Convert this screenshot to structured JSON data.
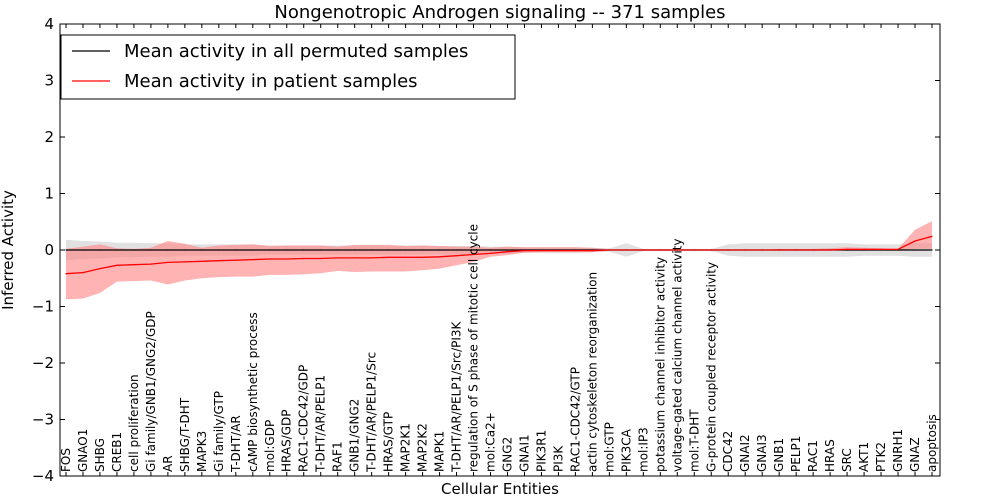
{
  "chart_data": {
    "type": "line",
    "title": "Nongenotropic Androgen signaling -- 371 samples",
    "xlabel": "Cellular Entities",
    "ylabel": "Inferred Activity",
    "ylim": [
      -4,
      4
    ],
    "yticks": [
      -4,
      -3,
      -2,
      -1,
      0,
      1,
      2,
      3,
      4
    ],
    "legend_position": "top-left",
    "colors": {
      "permuted_line": "#000000",
      "permuted_band": "#c8c8c8",
      "patient_line": "#ff0000",
      "patient_band": "#ff8080"
    },
    "categories": [
      "FOS",
      "GNAO1",
      "SHBG",
      "CREB1",
      "cell proliferation",
      "Gi family/GNB1/GNG2/GDP",
      "AR",
      "SHBG/T-DHT",
      "MAPK3",
      "Gi family/GTP",
      "T-DHT/AR",
      "cAMP biosynthetic process",
      "mol:GDP",
      "HRAS/GDP",
      "RAC1-CDC42/GDP",
      "T-DHT/AR/PELP1",
      "RAF1",
      "GNB1/GNG2",
      "T-DHT/AR/PELP1/Src",
      "HRAS/GTP",
      "MAP2K1",
      "MAP2K2",
      "MAPK1",
      "T-DHT/AR/PELP1/Src/PI3K",
      "regulation of S phase of mitotic cell cycle",
      "mol:Ca2+",
      "GNG2",
      "GNAI1",
      "PIK3R1",
      "PI3K",
      "RAC1-CDC42/GTP",
      "actin cytoskeleton reorganization",
      "mol:GTP",
      "PIK3CA",
      "mol:IP3",
      "potassium channel inhibitor activity",
      "voltage-gated calcium channel activity",
      "mol:T-DHT",
      "G-protein coupled receptor activity",
      "CDC42",
      "GNAI2",
      "GNAI3",
      "GNB1",
      "PELP1",
      "RAC1",
      "HRAS",
      "SRC",
      "AKT1",
      "PTK2",
      "GNRH1",
      "GNAZ",
      "apoptosis"
    ],
    "series": [
      {
        "name": "Mean activity in all permuted samples",
        "values": [
          0,
          0,
          0,
          0,
          0,
          0,
          0,
          0,
          0,
          0,
          0,
          0,
          0,
          0,
          0,
          0,
          0,
          0,
          0,
          0,
          0,
          0,
          0,
          0,
          0,
          0,
          0,
          0,
          0,
          0,
          0,
          0,
          0,
          0,
          0,
          0,
          0,
          0,
          0,
          0,
          0,
          0,
          0,
          0,
          0,
          0,
          0,
          0,
          0,
          0,
          0,
          0
        ],
        "lower": [
          -0.18,
          -0.16,
          -0.15,
          -0.13,
          -0.13,
          -0.12,
          -0.12,
          -0.1,
          -0.1,
          -0.1,
          -0.1,
          -0.1,
          -0.08,
          -0.08,
          -0.08,
          -0.08,
          -0.08,
          -0.08,
          -0.08,
          -0.08,
          -0.08,
          -0.08,
          -0.07,
          -0.07,
          -0.07,
          -0.06,
          -0.06,
          -0.05,
          -0.05,
          -0.05,
          -0.05,
          -0.04,
          -0.03,
          -0.12,
          -0.02,
          -0.02,
          -0.02,
          -0.02,
          -0.02,
          -0.1,
          -0.12,
          -0.12,
          -0.12,
          -0.12,
          -0.12,
          -0.12,
          -0.12,
          -0.1,
          -0.1,
          -0.1,
          -0.12,
          -0.12
        ],
        "upper": [
          0.18,
          0.16,
          0.15,
          0.13,
          0.13,
          0.12,
          0.12,
          0.1,
          0.1,
          0.1,
          0.1,
          0.1,
          0.08,
          0.08,
          0.08,
          0.08,
          0.08,
          0.08,
          0.08,
          0.08,
          0.08,
          0.08,
          0.07,
          0.07,
          0.07,
          0.06,
          0.06,
          0.05,
          0.05,
          0.05,
          0.05,
          0.04,
          0.03,
          0.12,
          0.02,
          0.02,
          0.02,
          0.02,
          0.02,
          0.1,
          0.12,
          0.12,
          0.12,
          0.12,
          0.12,
          0.12,
          0.12,
          0.1,
          0.1,
          0.1,
          0.12,
          0.12
        ]
      },
      {
        "name": "Mean activity in patient samples",
        "values": [
          -0.42,
          -0.4,
          -0.33,
          -0.27,
          -0.26,
          -0.25,
          -0.22,
          -0.21,
          -0.2,
          -0.19,
          -0.18,
          -0.17,
          -0.16,
          -0.16,
          -0.15,
          -0.15,
          -0.14,
          -0.14,
          -0.14,
          -0.13,
          -0.13,
          -0.13,
          -0.12,
          -0.1,
          -0.08,
          -0.06,
          -0.03,
          -0.01,
          -0.01,
          -0.01,
          -0.01,
          -0.01,
          0,
          0,
          0,
          0,
          0,
          0,
          0,
          0,
          0,
          0,
          0,
          0,
          0,
          0,
          0.01,
          0.01,
          0.01,
          0.01,
          0.16,
          0.24
        ],
        "lower": [
          -0.87,
          -0.86,
          -0.76,
          -0.56,
          -0.55,
          -0.54,
          -0.61,
          -0.54,
          -0.5,
          -0.48,
          -0.47,
          -0.47,
          -0.44,
          -0.44,
          -0.43,
          -0.41,
          -0.37,
          -0.39,
          -0.38,
          -0.38,
          -0.38,
          -0.36,
          -0.33,
          -0.27,
          -0.21,
          -0.12,
          -0.09,
          -0.05,
          -0.04,
          -0.04,
          -0.04,
          -0.04,
          -0.01,
          0,
          0,
          0,
          0,
          0,
          0,
          0,
          0,
          0,
          0,
          0,
          0,
          0,
          -0.01,
          -0.01,
          0,
          0,
          0.02,
          0.02
        ],
        "upper": [
          0.02,
          0.06,
          0.1,
          0.03,
          0.02,
          0.04,
          0.16,
          0.11,
          0.04,
          0.08,
          0.09,
          0.1,
          0.07,
          0.08,
          0.08,
          0.08,
          0.06,
          0.09,
          0.09,
          0.09,
          0.07,
          0.08,
          0.07,
          0.06,
          0.06,
          0.04,
          0.06,
          0.05,
          0.05,
          0.05,
          0.05,
          0.04,
          0.01,
          0,
          0,
          0,
          0,
          0,
          0,
          0,
          0,
          0,
          0.02,
          0.02,
          0.02,
          0.03,
          0.05,
          0.04,
          0.03,
          0.02,
          0.36,
          0.51
        ]
      }
    ]
  }
}
